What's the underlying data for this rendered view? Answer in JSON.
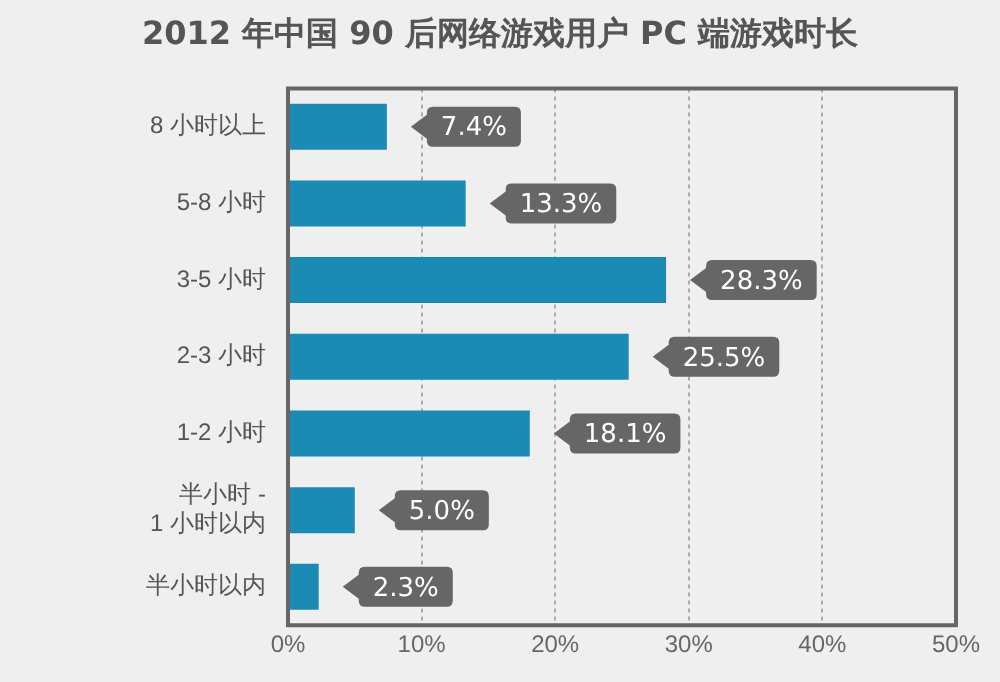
{
  "chart_data": {
    "type": "bar",
    "orientation": "horizontal",
    "title": "2012 年中国 90 后网络游戏用户 PC 端游戏时长",
    "categories": [
      "8 小时以上",
      "5-8 小时",
      "3-5 小时",
      "2-3 小时",
      "1-2 小时",
      "半小时 - 1 小时以内",
      "半小时以内"
    ],
    "values": [
      7.4,
      13.3,
      28.3,
      25.5,
      18.1,
      5.0,
      2.3
    ],
    "value_labels": [
      "7.4%",
      "13.3%",
      "28.3%",
      "25.5%",
      "18.1%",
      "5.0%",
      "2.3%"
    ],
    "color": "#1b8ab5",
    "xlim": [
      0,
      50
    ],
    "xticks": [
      {
        "value": 0,
        "label": "0%"
      },
      {
        "value": 10,
        "label": "10%"
      },
      {
        "value": 20,
        "label": "20%"
      },
      {
        "value": 30,
        "label": "30%"
      },
      {
        "value": 40,
        "label": "40%"
      },
      {
        "value": 50,
        "label": "50%"
      }
    ],
    "grid": "x"
  }
}
